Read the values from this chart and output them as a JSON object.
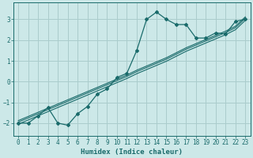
{
  "xlabel": "Humidex (Indice chaleur)",
  "background_color": "#cce8e8",
  "grid_color": "#aacccc",
  "line_color": "#1a6b6b",
  "x_data": [
    0,
    1,
    2,
    3,
    4,
    5,
    6,
    7,
    8,
    9,
    10,
    11,
    12,
    13,
    14,
    15,
    16,
    17,
    18,
    19,
    20,
    21,
    22,
    23
  ],
  "y_main": [
    -2.0,
    -2.0,
    -1.65,
    -1.25,
    -2.0,
    -2.1,
    -1.55,
    -1.2,
    -0.6,
    -0.35,
    0.2,
    0.4,
    1.5,
    3.0,
    3.35,
    3.0,
    2.75,
    2.75,
    2.1,
    2.1,
    2.35,
    2.3,
    2.9,
    3.0
  ],
  "y_reg1": [
    -2.05,
    -1.85,
    -1.65,
    -1.45,
    -1.25,
    -1.05,
    -0.85,
    -0.65,
    -0.45,
    -0.25,
    -0.05,
    0.15,
    0.38,
    0.58,
    0.78,
    0.98,
    1.22,
    1.46,
    1.66,
    1.86,
    2.06,
    2.26,
    2.5,
    2.95
  ],
  "y_reg2": [
    -1.95,
    -1.75,
    -1.55,
    -1.35,
    -1.15,
    -0.95,
    -0.75,
    -0.55,
    -0.35,
    -0.15,
    0.05,
    0.25,
    0.48,
    0.68,
    0.88,
    1.08,
    1.32,
    1.56,
    1.76,
    1.96,
    2.16,
    2.36,
    2.6,
    3.05
  ],
  "y_reg3": [
    -1.88,
    -1.68,
    -1.48,
    -1.28,
    -1.08,
    -0.88,
    -0.68,
    -0.48,
    -0.28,
    -0.08,
    0.12,
    0.32,
    0.55,
    0.75,
    0.95,
    1.15,
    1.39,
    1.63,
    1.83,
    2.03,
    2.23,
    2.43,
    2.67,
    3.12
  ],
  "ylim": [
    -2.6,
    3.8
  ],
  "xlim": [
    -0.5,
    23.5
  ],
  "yticks": [
    -2,
    -1,
    0,
    1,
    2,
    3
  ],
  "xticks": [
    0,
    1,
    2,
    3,
    4,
    5,
    6,
    7,
    8,
    9,
    10,
    11,
    12,
    13,
    14,
    15,
    16,
    17,
    18,
    19,
    20,
    21,
    22,
    23
  ]
}
